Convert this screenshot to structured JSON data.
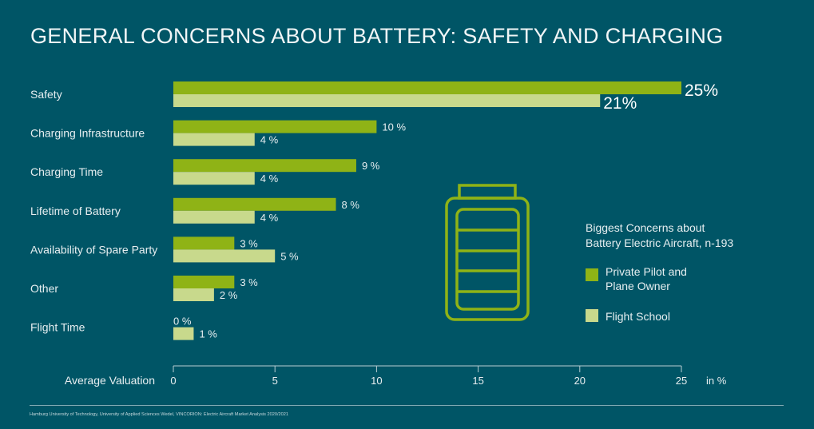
{
  "title": "GENERAL CONCERNS ABOUT BATTERY: SAFETY AND CHARGING",
  "colors": {
    "background": "#005566",
    "private_pilot": "#8fb316",
    "flight_school": "#c8d98c",
    "battery_icon": "#8fb316"
  },
  "icon": "battery-icon",
  "chart_data": {
    "type": "bar",
    "orientation": "horizontal",
    "title": "GENERAL CONCERNS ABOUT BATTERY: SAFETY AND CHARGING",
    "categories": [
      "Safety",
      "Charging Infrastructure",
      "Charging Time",
      "Lifetime of Battery",
      "Availability of Spare Party",
      "Other",
      "Flight Time"
    ],
    "series": [
      {
        "name": "Private Pilot and Plane Owner",
        "values": [
          25,
          10,
          9,
          8,
          3,
          3,
          0
        ],
        "labels": [
          "25%",
          "10 %",
          "9 %",
          "8 %",
          "3 %",
          "3 %",
          "0 %"
        ]
      },
      {
        "name": "Flight School",
        "values": [
          21,
          4,
          4,
          4,
          5,
          2,
          1
        ],
        "labels": [
          "21%",
          "4 %",
          "4 %",
          "4 %",
          "5 %",
          "2 %",
          "1 %"
        ]
      }
    ],
    "xlabel": "Average Valuation",
    "xunit": "in %",
    "xlim": [
      0,
      25
    ],
    "xticks": [
      "0",
      "5",
      "10",
      "15",
      "20",
      "25"
    ],
    "grid": false,
    "legend": {
      "title": "Biggest Concerns about Battery Electric Aircraft, n-193",
      "entries": [
        "Private Pilot and Plane Owner",
        "Flight School"
      ],
      "position": "right"
    }
  },
  "legend": {
    "title_line1": "Biggest Concerns about",
    "title_line2": "Battery Electric Aircraft, n-193",
    "item1_line1": "Private Pilot and",
    "item1_line2": "Plane Owner",
    "item2": "Flight School"
  },
  "source": "Hamburg University of Technology, University of Applied Sciences Wedel, VINCORION: Electric Aircraft Market Analysis 2020/2021"
}
